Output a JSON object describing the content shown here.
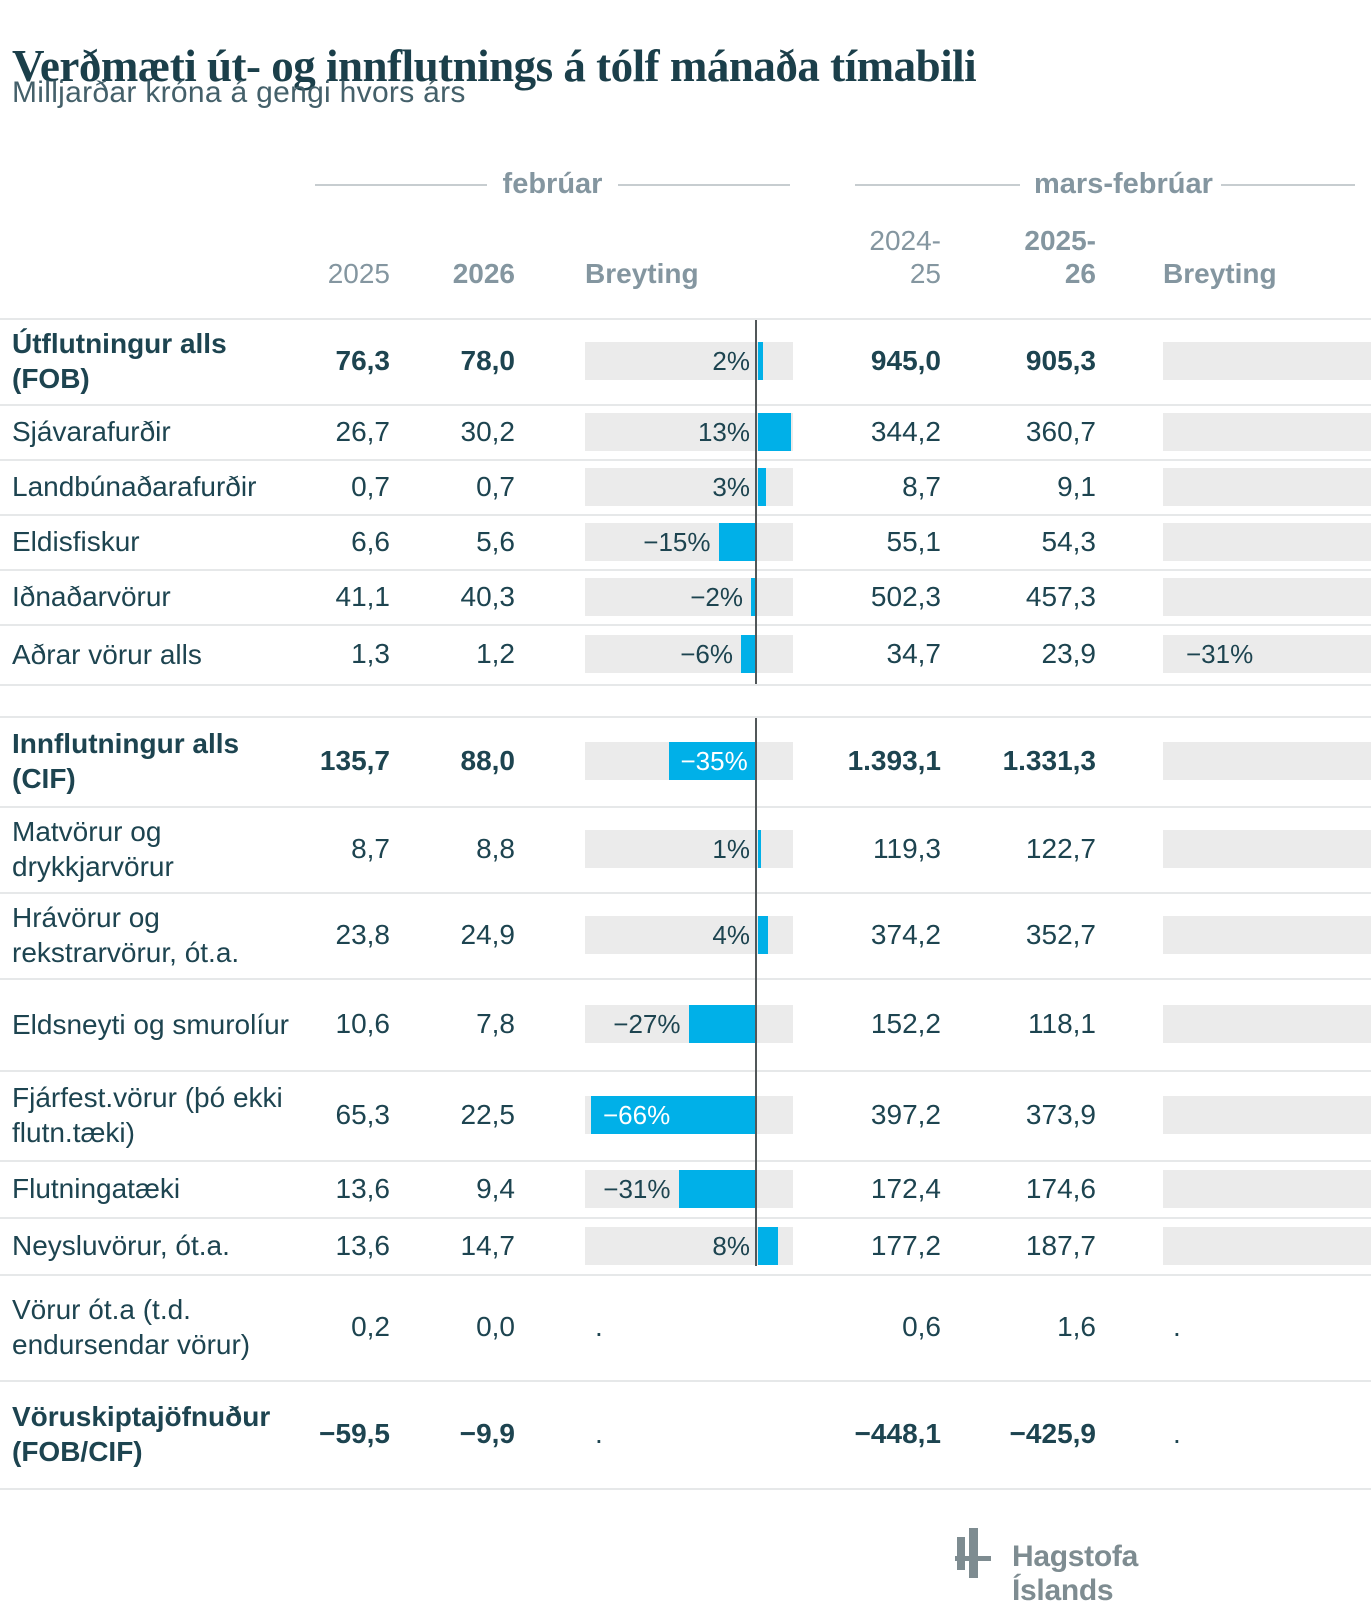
{
  "title": "Verðmæti út- og innflutnings á tólf mánaða tímabili",
  "subtitle": "Milljarðar króna á gengi hvors árs",
  "groups": {
    "feb": "febrúar",
    "mars": "mars-febrúar"
  },
  "columns": {
    "feb_c1": "2025",
    "feb_c2": "2026",
    "feb_breyting": "Breyting",
    "mars_c1_line1": "2024-",
    "mars_c1_line2": "25",
    "mars_c2_line1": "2025-",
    "mars_c2_line2": "26",
    "mars_breyting": "Breyting"
  },
  "colors": {
    "accent_cyan": "#00b0e8",
    "bar_background": "#ebebeb",
    "dark_text": "#1d4450",
    "header_gray": "#8496a0"
  },
  "footer": {
    "brand": "Hagstofa Íslands"
  },
  "chart_data": {
    "type": "table",
    "embedded_chart": "bar",
    "bar_unit": "percent change",
    "columns": [
      "febrúar 2025",
      "febrúar 2026",
      "Breyting",
      "mars-febrúar 2024-25",
      "mars-febrúar 2025-26",
      "Breyting"
    ],
    "rows": [
      {
        "label": "Útflutningur alls (FOB)",
        "bold": true,
        "feb_2025": "76,3",
        "feb_2026": "78,0",
        "change_pct": 2,
        "change_label": "2%",
        "mars_2024_25": "945,0",
        "mars_2025_26": "905,3",
        "bar": true,
        "bar2": true,
        "change2_label": ""
      },
      {
        "label": "Sjávarafurðir",
        "bold": false,
        "feb_2025": "26,7",
        "feb_2026": "30,2",
        "change_pct": 13,
        "change_label": "13%",
        "mars_2024_25": "344,2",
        "mars_2025_26": "360,7",
        "bar": true,
        "bar2": true,
        "change2_label": ""
      },
      {
        "label": "Landbúnaðarafurðir",
        "bold": false,
        "feb_2025": "0,7",
        "feb_2026": "0,7",
        "change_pct": 3,
        "change_label": "3%",
        "mars_2024_25": "8,7",
        "mars_2025_26": "9,1",
        "bar": true,
        "bar2": true,
        "change2_label": ""
      },
      {
        "label": "Eldisfiskur",
        "bold": false,
        "feb_2025": "6,6",
        "feb_2026": "5,6",
        "change_pct": -15,
        "change_label": "−15%",
        "mars_2024_25": "55,1",
        "mars_2025_26": "54,3",
        "bar": true,
        "bar2": true,
        "change2_label": ""
      },
      {
        "label": "Iðnaðarvörur",
        "bold": false,
        "feb_2025": "41,1",
        "feb_2026": "40,3",
        "change_pct": -2,
        "change_label": "−2%",
        "mars_2024_25": "502,3",
        "mars_2025_26": "457,3",
        "bar": true,
        "bar2": true,
        "change2_label": ""
      },
      {
        "label": "Aðrar vörur alls",
        "bold": false,
        "feb_2025": "1,3",
        "feb_2026": "1,2",
        "change_pct": -6,
        "change_label": "−6%",
        "mars_2024_25": "34,7",
        "mars_2025_26": "23,9",
        "bar": true,
        "bar2": true,
        "change2_label": "−31%"
      },
      {
        "label": "Innflutningur alls (CIF)",
        "bold": true,
        "feb_2025": "135,7",
        "feb_2026": "88,0",
        "change_pct": -35,
        "change_label": "−35%",
        "mars_2024_25": "1.393,1",
        "mars_2025_26": "1.331,3",
        "bar": true,
        "bar2": true,
        "change2_label": ""
      },
      {
        "label": "Matvörur og drykkjarvörur",
        "bold": false,
        "feb_2025": "8,7",
        "feb_2026": "8,8",
        "change_pct": 1,
        "change_label": "1%",
        "mars_2024_25": "119,3",
        "mars_2025_26": "122,7",
        "bar": true,
        "bar2": true,
        "change2_label": ""
      },
      {
        "label": "Hrávörur og rekstrarvörur, ót.a.",
        "bold": false,
        "feb_2025": "23,8",
        "feb_2026": "24,9",
        "change_pct": 4,
        "change_label": "4%",
        "mars_2024_25": "374,2",
        "mars_2025_26": "352,7",
        "bar": true,
        "bar2": true,
        "change2_label": ""
      },
      {
        "label": "Eldsneyti og smurolíur",
        "bold": false,
        "feb_2025": "10,6",
        "feb_2026": "7,8",
        "change_pct": -27,
        "change_label": "−27%",
        "mars_2024_25": "152,2",
        "mars_2025_26": "118,1",
        "bar": true,
        "bar2": true,
        "change2_label": ""
      },
      {
        "label": "Fjárfest.vörur (þó ekki flutn.tæki)",
        "bold": false,
        "feb_2025": "65,3",
        "feb_2026": "22,5",
        "change_pct": -66,
        "change_label": "−66%",
        "mars_2024_25": "397,2",
        "mars_2025_26": "373,9",
        "bar": true,
        "bar2": true,
        "change2_label": ""
      },
      {
        "label": "Flutningatæki",
        "bold": false,
        "feb_2025": "13,6",
        "feb_2026": "9,4",
        "change_pct": -31,
        "change_label": "−31%",
        "mars_2024_25": "172,4",
        "mars_2025_26": "174,6",
        "bar": true,
        "bar2": true,
        "change2_label": ""
      },
      {
        "label": "Neysluvörur, ót.a.",
        "bold": false,
        "feb_2025": "13,6",
        "feb_2026": "14,7",
        "change_pct": 8,
        "change_label": "8%",
        "mars_2024_25": "177,2",
        "mars_2025_26": "187,7",
        "bar": true,
        "bar2": true,
        "change2_label": ""
      },
      {
        "label": "Vörur ót.a (t.d. endursendar vörur)",
        "bold": false,
        "feb_2025": "0,2",
        "feb_2026": "0,0",
        "change_pct": null,
        "change_label": ".",
        "mars_2024_25": "0,6",
        "mars_2025_26": "1,6",
        "bar": false,
        "bar2": false,
        "change2_label": "."
      },
      {
        "label": "Vöruskiptajöfnuður (FOB/CIF)",
        "bold": true,
        "feb_2025": "−59,5",
        "feb_2026": "−9,9",
        "change_pct": null,
        "change_label": ".",
        "mars_2024_25": "−448,1",
        "mars_2025_26": "−425,9",
        "bar": false,
        "bar2": false,
        "change2_label": "."
      }
    ]
  }
}
